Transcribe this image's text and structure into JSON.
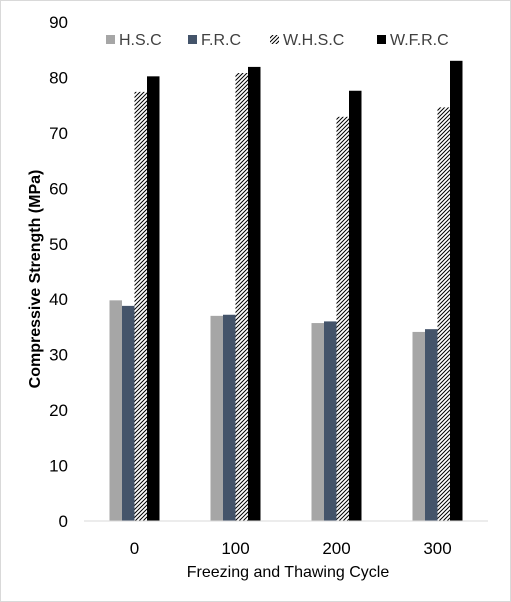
{
  "chart_data": {
    "type": "bar",
    "title": "",
    "xlabel": "Freezing and Thawing Cycle",
    "ylabel": "Compressive Strength (MPa)",
    "categories": [
      "0",
      "100",
      "200",
      "300"
    ],
    "ylim": [
      0,
      90
    ],
    "yticks": [
      "0",
      "10",
      "20",
      "30",
      "40",
      "50",
      "60",
      "70",
      "80",
      "90"
    ],
    "grid": false,
    "legend_position": "top",
    "series": [
      {
        "name": "H.S.C",
        "color": "#a6a6a6",
        "pattern": "solid",
        "values": [
          39.8,
          37.0,
          35.7,
          34.1
        ]
      },
      {
        "name": "F.R.C",
        "color": "#44546a",
        "pattern": "solid",
        "values": [
          38.8,
          37.2,
          36.0,
          34.6
        ]
      },
      {
        "name": "W.H.S.C",
        "color": "#000000",
        "pattern": "hatch",
        "values": [
          77.4,
          80.8,
          72.9,
          74.6
        ]
      },
      {
        "name": "W.F.R.C",
        "color": "#000000",
        "pattern": "solid",
        "values": [
          80.2,
          81.9,
          77.6,
          83.0
        ]
      }
    ]
  }
}
